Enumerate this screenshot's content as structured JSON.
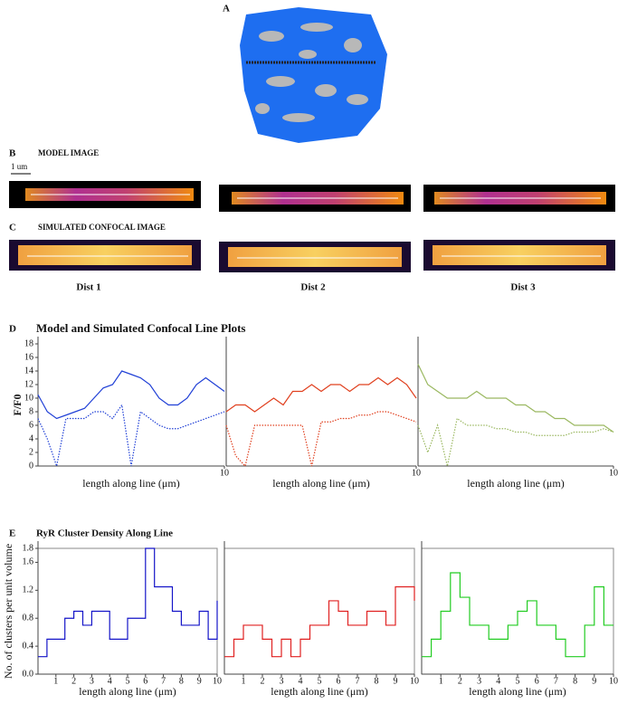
{
  "panel_labels": {
    "a": "A",
    "b": "B",
    "c": "C",
    "d": "D",
    "e": "E"
  },
  "model_image_title": "MODEL IMAGE",
  "scale_bar": "1 um",
  "confocal_title": "SIMULATED CONFOCAL IMAGE",
  "distributions": [
    "Dist 1",
    "Dist 2",
    "Dist 3"
  ],
  "line_plots_title": "Model and Simulated Confocal Line Plots",
  "density_title": "RyR Cluster Density Along Line",
  "chart_data": [
    {
      "type": "line",
      "ylabel": "F/F0",
      "xlabel": "length along line (μm)",
      "xlim": [
        0,
        10
      ],
      "ylim": [
        0,
        18
      ],
      "xticks": [
        10
      ],
      "yticks": [
        0,
        2,
        4,
        6,
        8,
        10,
        12,
        14,
        16,
        18
      ],
      "x": [
        0,
        0.5,
        1,
        1.5,
        2,
        2.5,
        3,
        3.5,
        4,
        4.5,
        5,
        5.5,
        6,
        6.5,
        7,
        7.5,
        8,
        8.5,
        9,
        9.5,
        10
      ],
      "series": [
        {
          "color": "#1f3fd6",
          "dash": false,
          "values": [
            10.5,
            8,
            7,
            7.5,
            8,
            8.5,
            10,
            11.5,
            12,
            14,
            13.5,
            13,
            12,
            10,
            9,
            9,
            10,
            12,
            13,
            12,
            11
          ]
        },
        {
          "color": "#1f3fd6",
          "dash": true,
          "values": [
            7,
            4,
            0,
            7,
            7,
            7,
            8,
            8,
            7,
            9,
            0,
            8,
            7,
            6,
            5.5,
            5.5,
            6,
            6.5,
            7,
            7.5,
            8
          ]
        }
      ]
    },
    {
      "type": "line",
      "xlabel": "length along line (μm)",
      "xlim": [
        0,
        10
      ],
      "ylim": [
        0,
        18
      ],
      "xticks": [
        10
      ],
      "x": [
        0,
        0.5,
        1,
        1.5,
        2,
        2.5,
        3,
        3.5,
        4,
        4.5,
        5,
        5.5,
        6,
        6.5,
        7,
        7.5,
        8,
        8.5,
        9,
        9.5,
        10
      ],
      "series": [
        {
          "color": "#e0401f",
          "dash": false,
          "values": [
            8,
            9,
            9,
            8,
            9,
            10,
            9,
            11,
            11,
            12,
            11,
            12,
            12,
            11,
            12,
            12,
            13,
            12,
            13,
            12,
            10
          ]
        },
        {
          "color": "#e0401f",
          "dash": true,
          "values": [
            6,
            1.5,
            0,
            6,
            6,
            6,
            6,
            6,
            6,
            0,
            6.5,
            6.5,
            7,
            7,
            7.5,
            7.5,
            8,
            8,
            7.5,
            7,
            6.5
          ]
        }
      ]
    },
    {
      "type": "line",
      "xlabel": "length along line (μm)",
      "xlim": [
        0,
        10
      ],
      "ylim": [
        0,
        18
      ],
      "xticks": [
        10
      ],
      "x": [
        0,
        0.5,
        1,
        1.5,
        2,
        2.5,
        3,
        3.5,
        4,
        4.5,
        5,
        5.5,
        6,
        6.5,
        7,
        7.5,
        8,
        8.5,
        9,
        9.5,
        10
      ],
      "series": [
        {
          "color": "#9ab860",
          "dash": false,
          "values": [
            15,
            12,
            11,
            10,
            10,
            10,
            11,
            10,
            10,
            10,
            9,
            9,
            8,
            8,
            7,
            7,
            6,
            6,
            6,
            6,
            5
          ]
        },
        {
          "color": "#9ab860",
          "dash": true,
          "values": [
            6,
            2,
            6,
            0,
            7,
            6,
            6,
            6,
            5.5,
            5.5,
            5,
            5,
            4.5,
            4.5,
            4.5,
            4.5,
            5,
            5,
            5,
            5.5,
            5
          ]
        }
      ]
    },
    {
      "type": "step",
      "ylabel": "No. of clusters per unit volume",
      "xlabel": "length along line (μm)",
      "xlim": [
        0,
        10
      ],
      "ylim": [
        0,
        1.8
      ],
      "xticks": [
        1,
        2,
        3,
        4,
        5,
        6,
        7,
        8,
        9,
        10
      ],
      "yticks": [
        {
          "value": 0,
          "label": "0.0"
        },
        0.4,
        0.8,
        1.2,
        1.6,
        1.8
      ],
      "x": [
        0,
        0.5,
        1,
        1.5,
        2,
        2.5,
        3,
        3.5,
        4,
        4.5,
        5,
        5.5,
        6,
        6.5,
        7,
        7.5,
        8,
        8.5,
        9,
        9.5,
        10
      ],
      "series": [
        {
          "color": "#1414c8",
          "dash": false,
          "values": [
            0.25,
            0.5,
            0.5,
            0.8,
            0.9,
            0.7,
            0.9,
            0.9,
            0.5,
            0.5,
            0.8,
            0.8,
            1.8,
            1.25,
            1.25,
            0.9,
            0.7,
            0.7,
            0.9,
            0.5,
            1.05
          ]
        }
      ]
    },
    {
      "type": "step",
      "xlabel": "length along line (μm)",
      "xlim": [
        0,
        10
      ],
      "ylim": [
        0,
        1.8
      ],
      "xticks": [
        1,
        2,
        3,
        4,
        5,
        6,
        7,
        8,
        9,
        10
      ],
      "x": [
        0,
        0.5,
        1,
        1.5,
        2,
        2.5,
        3,
        3.5,
        4,
        4.5,
        5,
        5.5,
        6,
        6.5,
        7,
        7.5,
        8,
        8.5,
        9,
        9.5,
        10
      ],
      "series": [
        {
          "color": "#e02020",
          "dash": false,
          "values": [
            0.25,
            0.5,
            0.7,
            0.7,
            0.5,
            0.25,
            0.5,
            0.25,
            0.5,
            0.7,
            0.7,
            1.05,
            0.9,
            0.7,
            0.7,
            0.9,
            0.9,
            0.7,
            1.25,
            1.25,
            1.05
          ]
        }
      ]
    },
    {
      "type": "step",
      "xlabel": "length along line (μm)",
      "xlim": [
        0,
        10
      ],
      "ylim": [
        0,
        1.8
      ],
      "xticks": [
        1,
        2,
        3,
        4,
        5,
        6,
        7,
        8,
        9,
        10
      ],
      "x": [
        0,
        0.5,
        1,
        1.5,
        2,
        2.5,
        3,
        3.5,
        4,
        4.5,
        5,
        5.5,
        6,
        6.5,
        7,
        7.5,
        8,
        8.5,
        9,
        9.5,
        10
      ],
      "series": [
        {
          "color": "#22cc22",
          "dash": false,
          "values": [
            0.25,
            0.5,
            0.9,
            1.45,
            1.1,
            0.7,
            0.7,
            0.5,
            0.5,
            0.7,
            0.9,
            1.05,
            0.7,
            0.7,
            0.5,
            0.25,
            0.25,
            0.7,
            1.25,
            0.7,
            0.7
          ]
        }
      ]
    }
  ]
}
